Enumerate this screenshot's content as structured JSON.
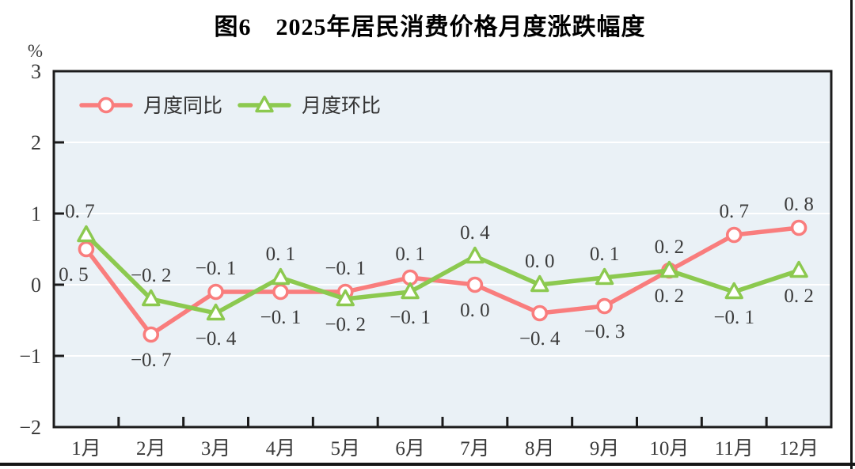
{
  "page": {
    "background": "#ffffff",
    "border_right_color": "#161616",
    "border_bottom_color": "#161616"
  },
  "chart_data": {
    "type": "line",
    "title": "图6　2025年居民消费价格月度涨跌幅度",
    "unit_label": "%",
    "categories": [
      "1月",
      "2月",
      "3月",
      "4月",
      "5月",
      "6月",
      "7月",
      "8月",
      "9月",
      "10月",
      "11月",
      "12月"
    ],
    "series": [
      {
        "name": "月度同比",
        "color": "#f97d7d",
        "marker": "circle",
        "values": [
          0.5,
          -0.7,
          -0.1,
          -0.1,
          -0.1,
          0.1,
          0.0,
          -0.4,
          -0.3,
          0.2,
          0.7,
          0.8
        ],
        "label_placement": [
          "below",
          "below",
          "above",
          "below",
          "above",
          "above",
          "below",
          "below",
          "below",
          "above",
          "above",
          "above"
        ],
        "label_dx": [
          -16,
          0,
          0,
          0,
          0,
          0,
          0,
          0,
          0,
          0,
          0,
          0
        ]
      },
      {
        "name": "月度环比",
        "color": "#8cc94f",
        "marker": "triangle",
        "values": [
          0.7,
          -0.2,
          -0.4,
          0.1,
          -0.2,
          -0.1,
          0.4,
          0.0,
          0.1,
          0.2,
          -0.1,
          0.2
        ],
        "label_placement": [
          "above",
          "above",
          "below",
          "above",
          "below",
          "below",
          "above",
          "above",
          "above",
          "below",
          "below",
          "below"
        ],
        "label_dx": [
          -8,
          0,
          0,
          0,
          0,
          0,
          0,
          0,
          0,
          0,
          0,
          0
        ]
      }
    ],
    "xlabel": "",
    "ylabel": "%",
    "ylim": [
      -2,
      3
    ],
    "yticks": [
      3,
      2,
      1,
      0,
      -1,
      -2
    ],
    "grid": {
      "horizontal": true,
      "color": "#ffffff"
    },
    "legend_position": "top-left-inside",
    "plot_background": "#eaf1f6",
    "axis_color": "#1c1c1c",
    "label_color": "#3b3b3b",
    "marker_fill": "#ffffff"
  }
}
